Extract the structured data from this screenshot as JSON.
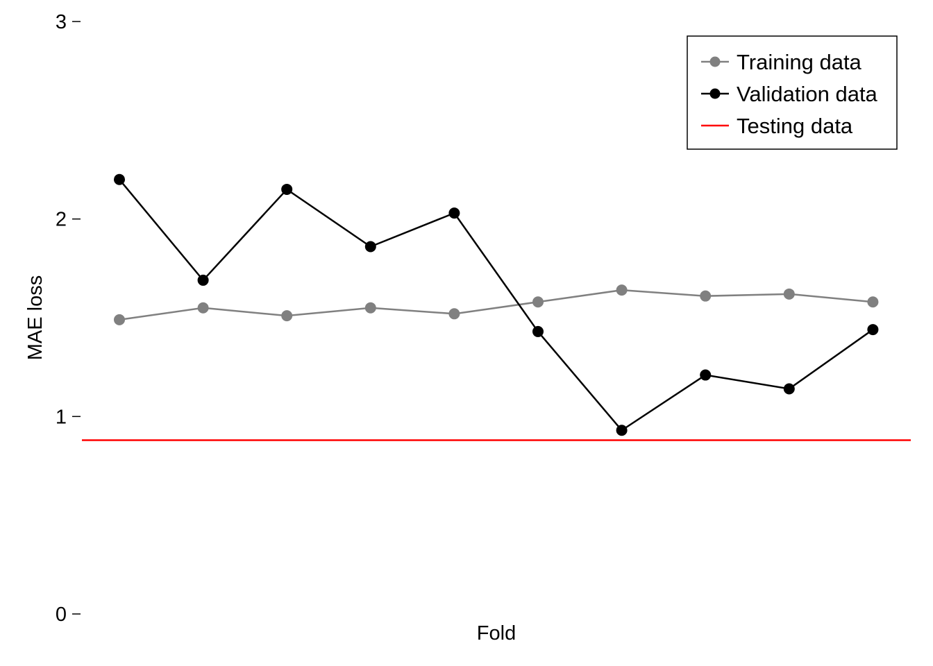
{
  "chart_data": {
    "type": "line",
    "title": "",
    "xlabel": "Fold",
    "ylabel": "MAE loss",
    "x": [
      1,
      2,
      3,
      4,
      5,
      6,
      7,
      8,
      9,
      10
    ],
    "ylim": [
      0,
      3
    ],
    "yticks": [
      0,
      1,
      2,
      3
    ],
    "grid": false,
    "legend_position": "top-right",
    "series": [
      {
        "name": "Training data",
        "color": "#808080",
        "marker": true,
        "values": [
          1.49,
          1.55,
          1.51,
          1.55,
          1.52,
          1.58,
          1.64,
          1.61,
          1.62,
          1.58
        ]
      },
      {
        "name": "Validation data",
        "color": "#000000",
        "marker": true,
        "values": [
          2.2,
          1.69,
          2.15,
          1.86,
          2.03,
          1.43,
          0.93,
          1.21,
          1.14,
          1.44
        ]
      }
    ],
    "reference_lines": [
      {
        "name": "Testing data",
        "color": "#ff0000",
        "y": 0.88
      }
    ]
  }
}
